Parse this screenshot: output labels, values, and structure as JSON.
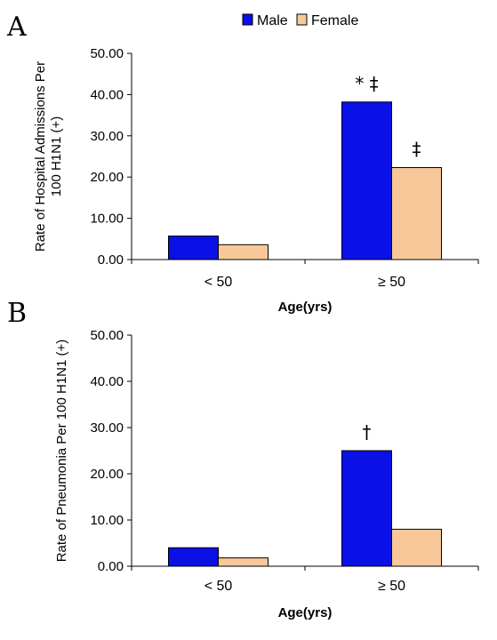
{
  "legend": {
    "items": [
      {
        "label": "Male",
        "color": "#0b10e6"
      },
      {
        "label": "Female",
        "color": "#f9c89a"
      }
    ]
  },
  "chart_data": [
    {
      "type": "bar",
      "panel": "A",
      "categories": [
        "< 50",
        "≥ 50"
      ],
      "series": [
        {
          "name": "Male",
          "values": [
            5.7,
            38.2
          ]
        },
        {
          "name": "Female",
          "values": [
            3.6,
            22.3
          ]
        }
      ],
      "ylabel_lines": [
        "Rate of Hospital Admissions Per",
        "100 H1N1 (+)"
      ],
      "xlabel": "Age(yrs)",
      "ylim": [
        0,
        50
      ],
      "yticks": [
        "0.00",
        "10.00",
        "20.00",
        "30.00",
        "40.00",
        "50.00"
      ],
      "annotations": [
        {
          "text": "* ‡",
          "category": 1,
          "series": 0
        },
        {
          "text": "‡",
          "category": 1,
          "series": 1
        }
      ]
    },
    {
      "type": "bar",
      "panel": "B",
      "categories": [
        "< 50",
        "≥ 50"
      ],
      "series": [
        {
          "name": "Male",
          "values": [
            4.0,
            25.0
          ]
        },
        {
          "name": "Female",
          "values": [
            1.8,
            8.0
          ]
        }
      ],
      "ylabel_lines": [
        "Rate of Pneumonia Per 100 H1N1 (+)"
      ],
      "xlabel": "Age(yrs)",
      "ylim": [
        0,
        50
      ],
      "yticks": [
        "0.00",
        "10.00",
        "20.00",
        "30.00",
        "40.00",
        "50.00"
      ],
      "annotations": [
        {
          "text": "†",
          "category": 1,
          "series": 0
        }
      ]
    }
  ]
}
